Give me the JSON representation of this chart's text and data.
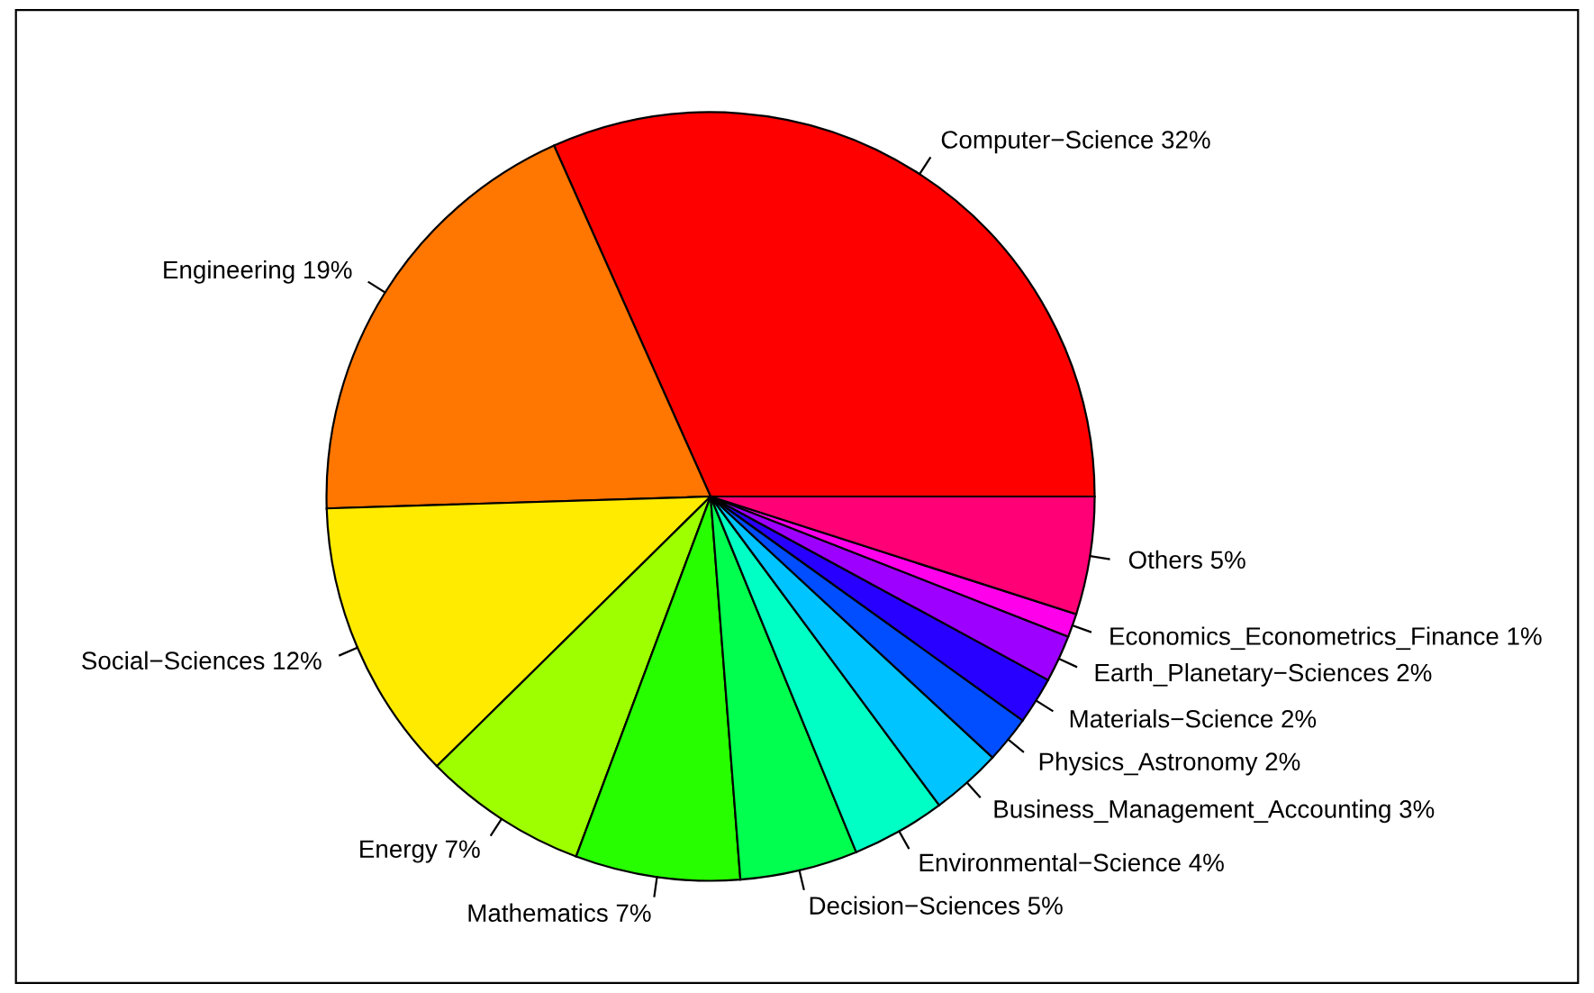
{
  "chart_data": {
    "type": "pie",
    "categories": [
      "Computer−Science",
      "Engineering",
      "Social−Sciences",
      "Energy",
      "Mathematics",
      "Decision−Sciences",
      "Environmental−Science",
      "Business_Management_Accounting",
      "Physics_Astronomy",
      "Materials−Science",
      "Earth_Planetary−Sciences",
      "Economics_Econometrics_Finance",
      "Others"
    ],
    "values": [
      32,
      19,
      12,
      7,
      7,
      5,
      4,
      3,
      2,
      2,
      2,
      1,
      5
    ],
    "value_labels": [
      "32%",
      "19%",
      "12%",
      "7%",
      "7%",
      "5%",
      "4%",
      "3%",
      "2%",
      "2%",
      "2%",
      "1%",
      "5%"
    ],
    "colors": [
      "#ff0000",
      "#ff7600",
      "#ffeb00",
      "#9dff00",
      "#27ff00",
      "#00ff4e",
      "#00ffc4",
      "#00c4ff",
      "#004eff",
      "#2700ff",
      "#9d00ff",
      "#ff00eb",
      "#ff0076"
    ]
  }
}
